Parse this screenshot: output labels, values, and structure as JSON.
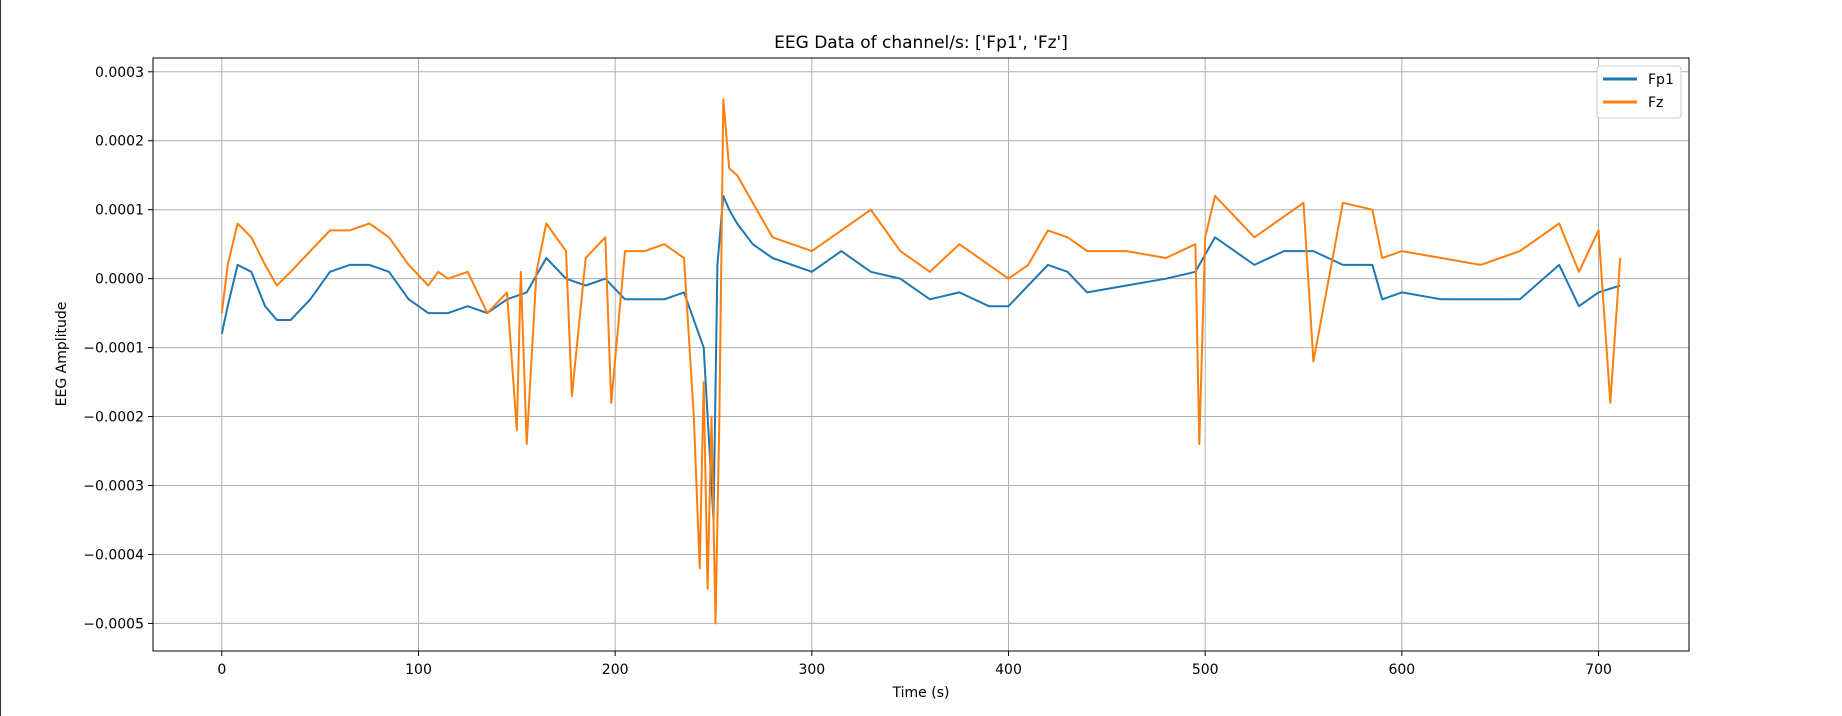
{
  "chart_data": {
    "type": "line",
    "title": "EEG Data of channel/s: ['Fp1', 'Fz']",
    "xlabel": "Time (s)",
    "ylabel": "EEG Amplitude",
    "xlim": [
      -35,
      746
    ],
    "ylim": [
      -0.00054,
      0.00032
    ],
    "xticks": [
      0,
      100,
      200,
      300,
      400,
      500,
      600,
      700
    ],
    "xtick_labels": [
      "0",
      "100",
      "200",
      "300",
      "400",
      "500",
      "600",
      "700"
    ],
    "yticks": [
      -0.0005,
      -0.0004,
      -0.0003,
      -0.0002,
      -0.0001,
      0.0,
      0.0001,
      0.0002,
      0.0003
    ],
    "ytick_labels": [
      "−0.0005",
      "−0.0004",
      "−0.0003",
      "−0.0002",
      "−0.0001",
      "0.0000",
      "0.0001",
      "0.0002",
      "0.0003"
    ],
    "grid": true,
    "legend_position": "top-right",
    "series": [
      {
        "name": "Fp1",
        "color": "#1f77b4",
        "x": [
          0,
          3,
          8,
          15,
          22,
          28,
          35,
          45,
          55,
          65,
          75,
          85,
          95,
          105,
          115,
          125,
          135,
          145,
          155,
          165,
          175,
          185,
          195,
          205,
          215,
          225,
          235,
          245,
          250,
          252,
          255,
          258,
          262,
          270,
          280,
          290,
          300,
          315,
          330,
          345,
          360,
          375,
          390,
          400,
          410,
          420,
          430,
          440,
          460,
          480,
          495,
          505,
          515,
          525,
          540,
          555,
          570,
          585,
          590,
          600,
          620,
          640,
          660,
          680,
          690,
          700,
          711
        ],
        "y": [
          -8e-05,
          -4e-05,
          2e-05,
          1e-05,
          -4e-05,
          -6e-05,
          -6e-05,
          -3e-05,
          1e-05,
          2e-05,
          2e-05,
          1e-05,
          -3e-05,
          -5e-05,
          -5e-05,
          -4e-05,
          -5e-05,
          -3e-05,
          -2e-05,
          3e-05,
          0.0,
          -1e-05,
          0.0,
          -3e-05,
          -3e-05,
          -3e-05,
          -2e-05,
          -0.0001,
          -0.00035,
          2e-05,
          0.00012,
          0.0001,
          8e-05,
          5e-05,
          3e-05,
          2e-05,
          1e-05,
          4e-05,
          1e-05,
          0.0,
          -3e-05,
          -2e-05,
          -4e-05,
          -4e-05,
          -1e-05,
          2e-05,
          1e-05,
          -2e-05,
          -1e-05,
          0.0,
          1e-05,
          6e-05,
          4e-05,
          2e-05,
          4e-05,
          4e-05,
          2e-05,
          2e-05,
          -3e-05,
          -2e-05,
          -3e-05,
          -3e-05,
          -3e-05,
          2e-05,
          -4e-05,
          -2e-05,
          -1e-05
        ]
      },
      {
        "name": "Fz",
        "color": "#ff7f0e",
        "x": [
          0,
          3,
          8,
          15,
          22,
          28,
          35,
          45,
          55,
          65,
          75,
          85,
          95,
          105,
          110,
          115,
          125,
          135,
          145,
          150,
          152,
          155,
          160,
          165,
          175,
          178,
          185,
          195,
          198,
          205,
          215,
          225,
          235,
          240,
          243,
          245,
          247,
          249,
          251,
          253,
          255,
          258,
          262,
          270,
          280,
          290,
          300,
          315,
          330,
          345,
          360,
          375,
          390,
          400,
          410,
          420,
          430,
          440,
          460,
          480,
          495,
          497,
          500,
          505,
          515,
          525,
          540,
          550,
          555,
          570,
          585,
          590,
          600,
          620,
          640,
          660,
          680,
          690,
          700,
          706,
          711
        ],
        "y": [
          -5e-05,
          2e-05,
          8e-05,
          6e-05,
          2e-05,
          -1e-05,
          1e-05,
          4e-05,
          7e-05,
          7e-05,
          8e-05,
          6e-05,
          2e-05,
          -1e-05,
          1e-05,
          0.0,
          1e-05,
          -5e-05,
          -2e-05,
          -0.00022,
          1e-05,
          -0.00024,
          1e-05,
          8e-05,
          4e-05,
          -0.00017,
          3e-05,
          6e-05,
          -0.00018,
          4e-05,
          4e-05,
          5e-05,
          3e-05,
          -0.0002,
          -0.00042,
          -0.00015,
          -0.00045,
          -0.0002,
          -0.0005,
          -0.0002,
          0.00026,
          0.00016,
          0.00015,
          0.00011,
          6e-05,
          5e-05,
          4e-05,
          7e-05,
          0.0001,
          4e-05,
          1e-05,
          5e-05,
          2e-05,
          0.0,
          2e-05,
          7e-05,
          6e-05,
          4e-05,
          4e-05,
          3e-05,
          5e-05,
          -0.00024,
          6e-05,
          0.00012,
          9e-05,
          6e-05,
          9e-05,
          0.00011,
          -0.00012,
          0.00011,
          0.0001,
          3e-05,
          4e-05,
          3e-05,
          2e-05,
          4e-05,
          8e-05,
          1e-05,
          7e-05,
          -0.00018,
          3e-05
        ]
      }
    ]
  }
}
